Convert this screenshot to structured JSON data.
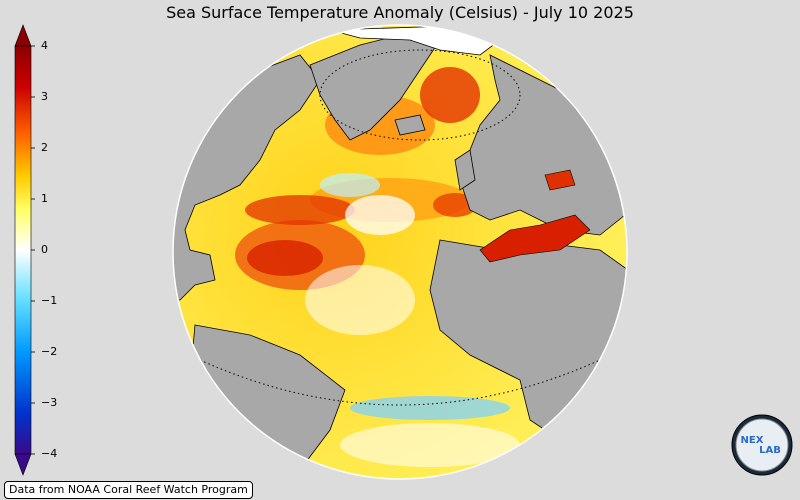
{
  "title": "Sea Surface Temperature Anomaly (Celsius) - July 10 2025",
  "colorbar": {
    "ticks": [
      "4",
      "3",
      "2",
      "1",
      "0",
      "−1",
      "−2",
      "−3",
      "−4"
    ],
    "tick_values": [
      4,
      3,
      2,
      1,
      0,
      -1,
      -2,
      -3,
      -4
    ],
    "range": [
      -4,
      4
    ],
    "colors": [
      "#3a0a8a",
      "#0033cc",
      "#0099ff",
      "#66e0ff",
      "#ffffff",
      "#ffff66",
      "#ffcc00",
      "#ff6600",
      "#cc0000",
      "#8b0000"
    ]
  },
  "map": {
    "projection": "orthographic",
    "ocean_colors": {
      "warm": "#ff8800",
      "hot": "#d81a00",
      "mild": "#ffee44",
      "neutral": "#ffffff",
      "cool": "#7fe0ff",
      "cold": "#2a8cff"
    },
    "land_color": "#a8a8a8",
    "outline_color": "#000000"
  },
  "credit": "Data from NOAA Coral Reef Watch Program",
  "logo": {
    "text_top": "NEX",
    "text_bottom": "LAB",
    "icon": "nexlab-logo-icon"
  }
}
